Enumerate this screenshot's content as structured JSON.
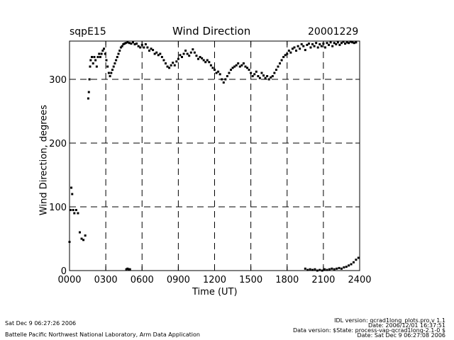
{
  "header": {
    "site": "sqpE15",
    "title": "Wind Direction",
    "date": "20001229"
  },
  "footer": {
    "timestamp": "Sat Dec  9 06:27:26 2006",
    "institution": "Battelle Pacific Northwest National Laboratory, Arm Data Application",
    "idl_version": "IDL version: qcrad1long_plots.pro,v 1.1",
    "date_line": "Date: 2006/12/01 16:37:51",
    "data_version": "Data version: $State: process-vap-qcrad1long-2.1-0 $",
    "date_line_2": "Date: Sat Dec  9 06:27:08 2006"
  },
  "chart_data": {
    "type": "scatter",
    "title": "Wind Direction",
    "xlabel": "Time (UT)",
    "ylabel": "Wind Direction, degrees",
    "xlim": [
      0,
      24
    ],
    "ylim": [
      0,
      360
    ],
    "grid": true,
    "x_ticks": [
      0,
      3,
      6,
      9,
      12,
      15,
      18,
      21,
      24
    ],
    "x_tick_labels": [
      "0000",
      "0300",
      "0600",
      "0900",
      "1200",
      "1500",
      "1800",
      "2100",
      "2400"
    ],
    "y_ticks": [
      0,
      100,
      200,
      300
    ],
    "y_tick_labels": [
      "0",
      "100",
      "200",
      "300"
    ],
    "series": [
      {
        "name": "wind direction",
        "color": "#000000",
        "points": [
          [
            0.0,
            45
          ],
          [
            0.08,
            95
          ],
          [
            0.15,
            130
          ],
          [
            0.22,
            120
          ],
          [
            0.3,
            95
          ],
          [
            0.4,
            90
          ],
          [
            0.55,
            95
          ],
          [
            0.7,
            90
          ],
          [
            0.85,
            60
          ],
          [
            1.0,
            50
          ],
          [
            1.15,
            48
          ],
          [
            1.3,
            55
          ],
          [
            1.55,
            270
          ],
          [
            1.6,
            280
          ],
          [
            1.65,
            300
          ],
          [
            1.7,
            320
          ],
          [
            1.75,
            330
          ],
          [
            1.85,
            335
          ],
          [
            1.95,
            325
          ],
          [
            2.05,
            335
          ],
          [
            2.15,
            330
          ],
          [
            2.25,
            320
          ],
          [
            2.35,
            335
          ],
          [
            2.45,
            340
          ],
          [
            2.55,
            335
          ],
          [
            2.65,
            340
          ],
          [
            2.75,
            345
          ],
          [
            2.85,
            348
          ],
          [
            2.95,
            340
          ],
          [
            3.05,
            330
          ],
          [
            3.15,
            320
          ],
          [
            3.25,
            310
          ],
          [
            3.35,
            305
          ],
          [
            3.45,
            310
          ],
          [
            3.55,
            315
          ],
          [
            3.65,
            320
          ],
          [
            3.75,
            325
          ],
          [
            3.85,
            330
          ],
          [
            3.95,
            335
          ],
          [
            4.05,
            340
          ],
          [
            4.15,
            345
          ],
          [
            4.25,
            350
          ],
          [
            4.35,
            352
          ],
          [
            4.45,
            355
          ],
          [
            4.55,
            356
          ],
          [
            4.65,
            357
          ],
          [
            4.8,
            358
          ],
          [
            4.95,
            357
          ],
          [
            5.1,
            356
          ],
          [
            5.25,
            358
          ],
          [
            5.4,
            355
          ],
          [
            5.55,
            356
          ],
          [
            5.7,
            352
          ],
          [
            5.85,
            350
          ],
          [
            6.0,
            354
          ],
          [
            6.15,
            350
          ],
          [
            6.3,
            355
          ],
          [
            6.45,
            350
          ],
          [
            6.6,
            345
          ],
          [
            6.75,
            348
          ],
          [
            6.9,
            346
          ],
          [
            7.05,
            340
          ],
          [
            7.2,
            342
          ],
          [
            7.35,
            338
          ],
          [
            7.5,
            340
          ],
          [
            7.65,
            335
          ],
          [
            7.8,
            330
          ],
          [
            7.95,
            325
          ],
          [
            8.1,
            320
          ],
          [
            8.25,
            318
          ],
          [
            8.4,
            322
          ],
          [
            8.55,
            326
          ],
          [
            8.7,
            322
          ],
          [
            8.85,
            328
          ],
          [
            9.0,
            332
          ],
          [
            9.15,
            338
          ],
          [
            9.3,
            335
          ],
          [
            9.45,
            340
          ],
          [
            9.6,
            345
          ],
          [
            9.75,
            340
          ],
          [
            9.9,
            337
          ],
          [
            10.05,
            342
          ],
          [
            10.2,
            347
          ],
          [
            10.35,
            342
          ],
          [
            10.5,
            337
          ],
          [
            10.65,
            332
          ],
          [
            10.8,
            335
          ],
          [
            10.95,
            333
          ],
          [
            11.1,
            330
          ],
          [
            11.25,
            327
          ],
          [
            11.4,
            330
          ],
          [
            11.55,
            327
          ],
          [
            11.7,
            322
          ],
          [
            11.85,
            318
          ],
          [
            12.0,
            315
          ],
          [
            12.15,
            310
          ],
          [
            12.3,
            312
          ],
          [
            12.45,
            308
          ],
          [
            12.6,
            300
          ],
          [
            12.75,
            295
          ],
          [
            12.9,
            300
          ],
          [
            13.05,
            305
          ],
          [
            13.2,
            310
          ],
          [
            13.35,
            315
          ],
          [
            13.5,
            318
          ],
          [
            13.65,
            320
          ],
          [
            13.8,
            322
          ],
          [
            13.95,
            325
          ],
          [
            14.1,
            320
          ],
          [
            14.25,
            322
          ],
          [
            14.4,
            325
          ],
          [
            14.55,
            320
          ],
          [
            14.7,
            318
          ],
          [
            14.85,
            315
          ],
          [
            15.0,
            310
          ],
          [
            15.15,
            305
          ],
          [
            15.3,
            308
          ],
          [
            15.45,
            312
          ],
          [
            15.6,
            305
          ],
          [
            15.75,
            302
          ],
          [
            15.9,
            310
          ],
          [
            16.05,
            306
          ],
          [
            16.2,
            302
          ],
          [
            16.35,
            305
          ],
          [
            16.5,
            300
          ],
          [
            16.65,
            303
          ],
          [
            16.8,
            305
          ],
          [
            16.95,
            310
          ],
          [
            17.1,
            315
          ],
          [
            17.25,
            320
          ],
          [
            17.4,
            325
          ],
          [
            17.55,
            330
          ],
          [
            17.7,
            335
          ],
          [
            17.85,
            338
          ],
          [
            18.0,
            340
          ],
          [
            18.15,
            345
          ],
          [
            18.3,
            342
          ],
          [
            18.45,
            348
          ],
          [
            18.6,
            350
          ],
          [
            18.75,
            345
          ],
          [
            18.9,
            352
          ],
          [
            19.05,
            348
          ],
          [
            19.2,
            355
          ],
          [
            19.35,
            352
          ],
          [
            19.5,
            346
          ],
          [
            19.65,
            354
          ],
          [
            19.8,
            356
          ],
          [
            19.95,
            350
          ],
          [
            20.1,
            355
          ],
          [
            20.25,
            352
          ],
          [
            20.4,
            357
          ],
          [
            20.55,
            350
          ],
          [
            20.7,
            355
          ],
          [
            20.85,
            352
          ],
          [
            21.0,
            356
          ],
          [
            21.15,
            350
          ],
          [
            21.3,
            357
          ],
          [
            21.45,
            354
          ],
          [
            21.6,
            358
          ],
          [
            21.75,
            352
          ],
          [
            21.9,
            357
          ],
          [
            22.05,
            355
          ],
          [
            22.2,
            358
          ],
          [
            22.35,
            354
          ],
          [
            22.5,
            357
          ],
          [
            22.65,
            359
          ],
          [
            22.8,
            356
          ],
          [
            22.95,
            358
          ],
          [
            23.1,
            357
          ],
          [
            23.25,
            359
          ],
          [
            23.4,
            358
          ],
          [
            23.55,
            357
          ],
          [
            23.7,
            358
          ],
          [
            4.7,
            2
          ],
          [
            4.8,
            3
          ],
          [
            4.9,
            2
          ],
          [
            5.0,
            2
          ],
          [
            19.5,
            3
          ],
          [
            19.7,
            1
          ],
          [
            19.9,
            2
          ],
          [
            20.1,
            1
          ],
          [
            20.3,
            2
          ],
          [
            20.5,
            0
          ],
          [
            20.7,
            1
          ],
          [
            20.9,
            0
          ],
          [
            21.1,
            2
          ],
          [
            21.3,
            1
          ],
          [
            21.5,
            2
          ],
          [
            21.7,
            3
          ],
          [
            21.9,
            2
          ],
          [
            22.1,
            3
          ],
          [
            22.3,
            4
          ],
          [
            22.5,
            3
          ],
          [
            22.7,
            5
          ],
          [
            22.9,
            6
          ],
          [
            23.1,
            8
          ],
          [
            23.3,
            10
          ],
          [
            23.5,
            13
          ],
          [
            23.7,
            17
          ],
          [
            23.9,
            20
          ]
        ]
      }
    ]
  }
}
